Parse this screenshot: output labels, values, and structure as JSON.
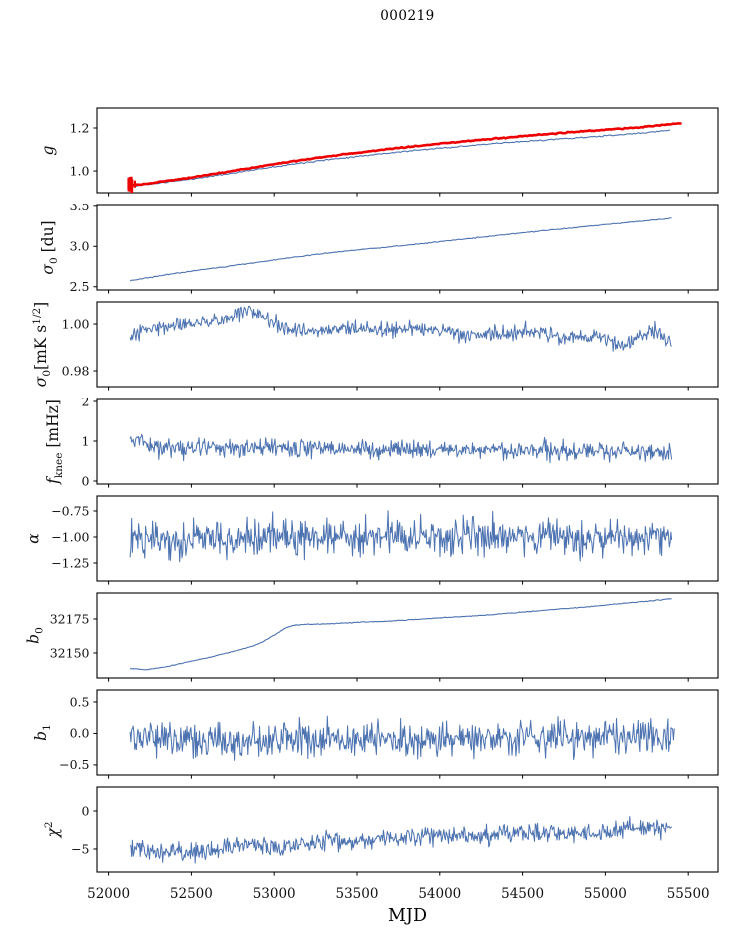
{
  "title": "000219",
  "chart_data": {
    "type": "line",
    "title": "000219",
    "xlabel": "MJD",
    "xlim": [
      51930,
      55680
    ],
    "x_ticks": [
      52000,
      52500,
      53000,
      53500,
      54000,
      54500,
      55000,
      55500
    ],
    "x_tick_labels": [
      "52000",
      "52500",
      "53000",
      "53500",
      "54000",
      "54500",
      "55000",
      "55500"
    ],
    "grid": false,
    "legend": "none",
    "line_color": "#4c72b0",
    "overlay_color": "#ee0000",
    "panels": [
      {
        "id": "g",
        "ylabel_plain": "g",
        "label": [
          {
            "t": "g",
            "s": "it"
          }
        ],
        "ylim": [
          0.898,
          1.293
        ],
        "yticks": [
          1.0,
          1.2
        ],
        "ytick_labels": [
          "1.0",
          "1.2"
        ],
        "series": [
          {
            "name": "g-gain-fit",
            "color": "#4c72b0",
            "width": 1.1,
            "x_start": 52130,
            "x_end": 55390,
            "n": 330,
            "noise": 0.0015,
            "seed": 11,
            "trend": [
              [
                52130,
                0.928
              ],
              [
                52250,
                0.938
              ],
              [
                52500,
                0.962
              ],
              [
                52750,
                0.99
              ],
              [
                53000,
                1.02
              ],
              [
                53250,
                1.046
              ],
              [
                53500,
                1.068
              ],
              [
                53750,
                1.088
              ],
              [
                54000,
                1.106
              ],
              [
                54250,
                1.122
              ],
              [
                54500,
                1.137
              ],
              [
                54750,
                1.15
              ],
              [
                55000,
                1.163
              ],
              [
                55200,
                1.175
              ],
              [
                55390,
                1.19
              ]
            ]
          },
          {
            "name": "g-gain-smooth",
            "color": "#ee0000",
            "width": 2.6,
            "x_start": 52130,
            "x_end": 55460,
            "n": 330,
            "noise": 0.0012,
            "seed": 12,
            "trend": [
              [
                52130,
                0.932
              ],
              [
                52250,
                0.943
              ],
              [
                52500,
                0.97
              ],
              [
                52750,
                1.0
              ],
              [
                53000,
                1.032
              ],
              [
                53250,
                1.06
              ],
              [
                53500,
                1.085
              ],
              [
                53750,
                1.107
              ],
              [
                54000,
                1.127
              ],
              [
                54250,
                1.145
              ],
              [
                54500,
                1.162
              ],
              [
                54750,
                1.178
              ],
              [
                55000,
                1.192
              ],
              [
                55200,
                1.203
              ],
              [
                55460,
                1.222
              ]
            ]
          }
        ],
        "errorbars": {
          "color": "#ee0000",
          "x": 52142,
          "x_jitter": 22,
          "y_center": 0.932,
          "y_spread": 0.012,
          "err_min": 0.015,
          "err_max": 0.042,
          "count": 10,
          "seed": 77,
          "width": 2.2
        }
      },
      {
        "id": "sigma0-du",
        "ylabel_plain": "sigma0 [du]",
        "label": [
          {
            "t": "σ",
            "s": "it"
          },
          {
            "t": "0",
            "s": "sub"
          },
          {
            "t": " [du]",
            "s": ""
          }
        ],
        "ylim": [
          2.46,
          3.51
        ],
        "yticks": [
          2.5,
          3.0,
          3.5
        ],
        "ytick_labels": [
          "2.5",
          "3.0",
          "3.5"
        ],
        "series": [
          {
            "name": "sigma0-du",
            "color": "#4c72b0",
            "width": 1.1,
            "x_start": 52130,
            "x_end": 55400,
            "n": 340,
            "noise": 0.003,
            "seed": 21,
            "trend": [
              [
                52130,
                2.575
              ],
              [
                52350,
                2.65
              ],
              [
                52600,
                2.72
              ],
              [
                52850,
                2.79
              ],
              [
                53100,
                2.86
              ],
              [
                53350,
                2.925
              ],
              [
                53600,
                2.975
              ],
              [
                53850,
                3.025
              ],
              [
                54100,
                3.08
              ],
              [
                54350,
                3.135
              ],
              [
                54600,
                3.19
              ],
              [
                54850,
                3.24
              ],
              [
                55100,
                3.29
              ],
              [
                55250,
                3.32
              ],
              [
                55400,
                3.35
              ]
            ]
          }
        ]
      },
      {
        "id": "sigma0-mK",
        "ylabel_plain": "sigma0 [mK s^(1/2)]",
        "label": [
          {
            "t": "σ",
            "s": "it"
          },
          {
            "t": "0",
            "s": "sub"
          },
          {
            "t": "[mK s",
            "s": ""
          },
          {
            "t": "1/2",
            "s": "sup"
          },
          {
            "t": "]",
            "s": ""
          }
        ],
        "ylim": [
          0.9732,
          1.0094
        ],
        "yticks": [
          0.98,
          1.0
        ],
        "ytick_labels": [
          "0.98",
          "1.00"
        ],
        "series": [
          {
            "name": "sigma0-mK",
            "color": "#4c72b0",
            "width": 1.0,
            "x_start": 52130,
            "x_end": 55400,
            "n": 650,
            "noise": 0.0016,
            "seed": 31,
            "trend": [
              [
                52130,
                0.9935
              ],
              [
                52250,
                0.9985
              ],
              [
                52400,
                1.0
              ],
              [
                52550,
                1.001
              ],
              [
                52700,
                1.002
              ],
              [
                52850,
                1.006
              ],
              [
                52950,
                1.002
              ],
              [
                53050,
                0.998
              ],
              [
                53200,
                0.9965
              ],
              [
                53350,
                0.998
              ],
              [
                53500,
                0.9985
              ],
              [
                53650,
                0.997
              ],
              [
                53800,
                0.998
              ],
              [
                53950,
                0.9975
              ],
              [
                54100,
                0.996
              ],
              [
                54250,
                0.9945
              ],
              [
                54400,
                0.996
              ],
              [
                54550,
                0.997
              ],
              [
                54700,
                0.9955
              ],
              [
                54850,
                0.9945
              ],
              [
                55000,
                0.9935
              ],
              [
                55100,
                0.99
              ],
              [
                55200,
                0.9955
              ],
              [
                55300,
                0.997
              ],
              [
                55400,
                0.9925
              ]
            ]
          }
        ]
      },
      {
        "id": "fknee",
        "ylabel_plain": "f_knee [mHz]",
        "label": [
          {
            "t": "f",
            "s": "it"
          },
          {
            "t": "knee",
            "s": "sub"
          },
          {
            "t": " [mHz]",
            "s": ""
          }
        ],
        "ylim": [
          -0.075,
          2.05
        ],
        "yticks": [
          0,
          1,
          2
        ],
        "ytick_labels": [
          "0",
          "1",
          "2"
        ],
        "series": [
          {
            "name": "fknee",
            "color": "#4c72b0",
            "width": 1.0,
            "x_start": 52130,
            "x_end": 55400,
            "n": 700,
            "noise": 0.115,
            "seed": 41,
            "trend": [
              [
                52130,
                0.95
              ],
              [
                52180,
                1.15
              ],
              [
                52240,
                0.85
              ],
              [
                52500,
                0.82
              ],
              [
                53000,
                0.83
              ],
              [
                53500,
                0.8
              ],
              [
                54000,
                0.78
              ],
              [
                54500,
                0.78
              ],
              [
                55000,
                0.76
              ],
              [
                55400,
                0.73
              ]
            ]
          }
        ]
      },
      {
        "id": "alpha",
        "ylabel_plain": "alpha",
        "label": [
          {
            "t": "α",
            "s": "it"
          }
        ],
        "ylim": [
          -1.423,
          -0.606
        ],
        "yticks": [
          -1.25,
          -1.0,
          -0.75
        ],
        "ytick_labels": [
          "−1.25",
          "−1.00",
          "−0.75"
        ],
        "series": [
          {
            "name": "alpha",
            "color": "#4c72b0",
            "width": 1.0,
            "x_start": 52130,
            "x_end": 55400,
            "n": 700,
            "noise": 0.088,
            "seed": 51,
            "trend": [
              [
                52130,
                -1.0
              ],
              [
                52500,
                -1.02
              ],
              [
                53000,
                -1.01
              ],
              [
                53500,
                -1.0
              ],
              [
                54000,
                -1.0
              ],
              [
                54500,
                -1.0
              ],
              [
                55000,
                -1.0
              ],
              [
                55400,
                -1.0
              ]
            ]
          }
        ]
      },
      {
        "id": "b0",
        "ylabel_plain": "b0",
        "label": [
          {
            "t": "b",
            "s": "it"
          },
          {
            "t": "0",
            "s": "sub"
          }
        ],
        "ylim": [
          32131.6,
          32194.1
        ],
        "yticks": [
          32150,
          32175
        ],
        "ytick_labels": [
          "32150",
          "32175"
        ],
        "series": [
          {
            "name": "b0-baseline",
            "color": "#4c72b0",
            "width": 1.1,
            "x_start": 52130,
            "x_end": 55400,
            "n": 360,
            "noise": 0.15,
            "seed": 61,
            "trend": [
              [
                52130,
                32138.5
              ],
              [
                52230,
                32137.6
              ],
              [
                52330,
                32139.5
              ],
              [
                52450,
                32142.5
              ],
              [
                52600,
                32146.5
              ],
              [
                52750,
                32151.0
              ],
              [
                52870,
                32155.0
              ],
              [
                52920,
                32157.5
              ],
              [
                53000,
                32163.0
              ],
              [
                53060,
                32168.0
              ],
              [
                53120,
                32170.5
              ],
              [
                53200,
                32171.0
              ],
              [
                53350,
                32171.5
              ],
              [
                53500,
                32172.5
              ],
              [
                53700,
                32173.5
              ],
              [
                53900,
                32175.0
              ],
              [
                54100,
                32176.5
              ],
              [
                54300,
                32178.0
              ],
              [
                54500,
                32180.0
              ],
              [
                54700,
                32182.0
              ],
              [
                54900,
                32184.0
              ],
              [
                55050,
                32185.8
              ],
              [
                55200,
                32187.5
              ],
              [
                55300,
                32188.6
              ],
              [
                55400,
                32190.0
              ]
            ]
          }
        ]
      },
      {
        "id": "b1",
        "ylabel_plain": "b1",
        "label": [
          {
            "t": "b",
            "s": "it"
          },
          {
            "t": "1",
            "s": "sub"
          }
        ],
        "ylim": [
          -0.66,
          0.69
        ],
        "yticks": [
          -0.5,
          0.0,
          0.5
        ],
        "ytick_labels": [
          "−0.5",
          "0.0",
          "0.5"
        ],
        "series": [
          {
            "name": "b1-slope",
            "color": "#4c72b0",
            "width": 1.0,
            "x_start": 52130,
            "x_end": 55420,
            "n": 700,
            "noise": 0.135,
            "seed": 71,
            "trend": [
              [
                52130,
                -0.02
              ],
              [
                52300,
                -0.1
              ],
              [
                52500,
                -0.14
              ],
              [
                52700,
                -0.12
              ],
              [
                52900,
                -0.13
              ],
              [
                53000,
                -0.07
              ],
              [
                53100,
                -0.03
              ],
              [
                53300,
                -0.06
              ],
              [
                53500,
                -0.08
              ],
              [
                53700,
                -0.1
              ],
              [
                53900,
                -0.11
              ],
              [
                54100,
                -0.09
              ],
              [
                54300,
                -0.08
              ],
              [
                54500,
                -0.06
              ],
              [
                54700,
                -0.06
              ],
              [
                54900,
                -0.05
              ],
              [
                55100,
                -0.04
              ],
              [
                55250,
                -0.05
              ],
              [
                55400,
                -0.04
              ]
            ]
          }
        ]
      },
      {
        "id": "chi2",
        "ylabel_plain": "chi^2",
        "label": [
          {
            "t": "χ",
            "s": "it"
          },
          {
            "t": "2",
            "s": "sup"
          }
        ],
        "ylim": [
          -8.03,
          3.16
        ],
        "yticks": [
          -5,
          0
        ],
        "ytick_labels": [
          "−5",
          "0"
        ],
        "series": [
          {
            "name": "chi2",
            "color": "#4c72b0",
            "width": 1.0,
            "x_start": 52130,
            "x_end": 55400,
            "n": 700,
            "noise": 0.6,
            "seed": 81,
            "trend": [
              [
                52130,
                -4.6
              ],
              [
                52250,
                -5.2
              ],
              [
                52400,
                -5.5
              ],
              [
                52550,
                -5.4
              ],
              [
                52700,
                -4.9
              ],
              [
                52850,
                -4.4
              ],
              [
                53000,
                -4.7
              ],
              [
                53150,
                -4.4
              ],
              [
                53300,
                -4.0
              ],
              [
                53450,
                -4.2
              ],
              [
                53600,
                -3.7
              ],
              [
                53750,
                -3.6
              ],
              [
                53900,
                -3.2
              ],
              [
                54050,
                -3.1
              ],
              [
                54200,
                -3.4
              ],
              [
                54350,
                -3.2
              ],
              [
                54500,
                -2.9
              ],
              [
                54650,
                -3.1
              ],
              [
                54800,
                -2.9
              ],
              [
                54950,
                -3.0
              ],
              [
                55100,
                -2.5
              ],
              [
                55250,
                -2.3
              ],
              [
                55400,
                -2.2
              ]
            ]
          }
        ]
      }
    ]
  }
}
